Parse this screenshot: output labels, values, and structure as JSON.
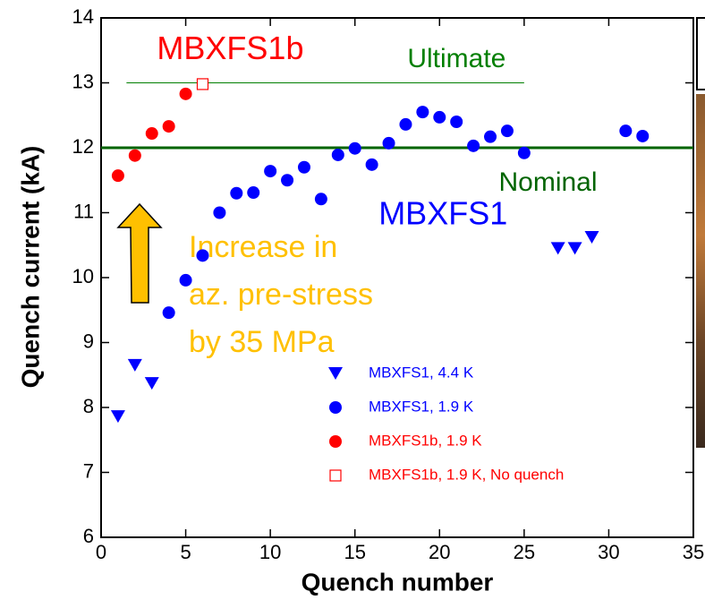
{
  "chart_data": {
    "type": "scatter",
    "xlabel": "Quench number",
    "ylabel": "Quench current (kA)",
    "xlim": [
      0,
      35
    ],
    "xticks": [
      0,
      5,
      10,
      15,
      20,
      25,
      30,
      35
    ],
    "ylim": [
      6,
      14
    ],
    "yticks": [
      6,
      7,
      8,
      9,
      10,
      11,
      12,
      13,
      14
    ],
    "series": [
      {
        "name": "MBXFS1, 4.4 K",
        "color": "#0000ff",
        "marker": "triangle-down",
        "x": [
          1,
          2,
          3,
          27,
          28,
          29
        ],
        "values": [
          7.86,
          8.65,
          8.37,
          10.45,
          10.45,
          10.62
        ]
      },
      {
        "name": "MBXFS1, 1.9 K",
        "color": "#0000ff",
        "marker": "circle",
        "x": [
          4,
          5,
          6,
          7,
          8,
          9,
          10,
          11,
          12,
          13,
          14,
          15,
          16,
          17,
          18,
          19,
          20,
          21,
          22,
          23,
          24,
          25,
          31,
          32
        ],
        "values": [
          9.46,
          9.96,
          10.34,
          11.0,
          11.3,
          11.31,
          11.64,
          11.5,
          11.7,
          11.21,
          11.89,
          11.99,
          11.74,
          12.07,
          12.36,
          12.55,
          12.47,
          12.4,
          12.03,
          12.17,
          12.26,
          11.92,
          12.26,
          12.18
        ]
      },
      {
        "name": "MBXFS1b, 1.9 K",
        "color": "#ff0000",
        "marker": "circle",
        "x": [
          1,
          2,
          3,
          4,
          5
        ],
        "values": [
          11.57,
          11.88,
          12.22,
          12.33,
          12.83
        ]
      },
      {
        "name": "MBXFS1b, 1.9 K, No quench",
        "color": "#ff0000",
        "marker": "square-open",
        "x": [
          6
        ],
        "values": [
          12.98
        ]
      }
    ],
    "reference_lines": [
      {
        "label": "Ultimate",
        "value": 13,
        "color": "#007f00",
        "x_from": 1.5,
        "x_to": 25,
        "width": 1
      },
      {
        "label": "Nominal",
        "value": 12,
        "color": "#006400",
        "x_from": 0,
        "x_to": 35,
        "width": 3
      }
    ],
    "annotations": [
      {
        "text": "MBXFS1b",
        "color": "#ff0000"
      },
      {
        "text": "MBXFS1",
        "color": "#0000ff"
      }
    ],
    "arrow_note": {
      "lines": [
        "Increase in",
        "az. pre-stress",
        "by 35 MPa"
      ],
      "color": "#ffc000"
    }
  }
}
